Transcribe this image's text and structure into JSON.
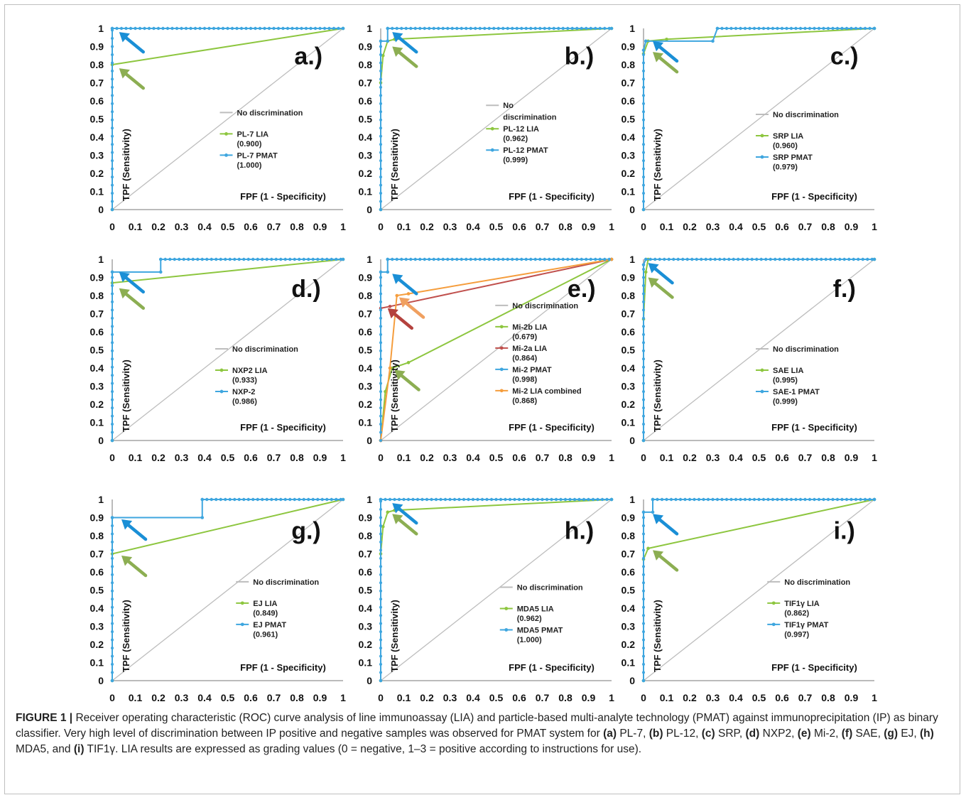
{
  "caption": {
    "figure_label": "FIGURE 1 |",
    "parts": [
      {
        "t": " Receiver operating characteristic (ROC) curve analysis of line immunoassay (LIA) and particle-based multi-analyte technology (PMAT) against immunoprecipitation (IP) as binary classifier. Very high level of discrimination between IP positive and negative samples was observed for PMAT system for ",
        "b": false
      },
      {
        "t": "(a)",
        "b": true
      },
      {
        "t": " PL-7, ",
        "b": false
      },
      {
        "t": "(b)",
        "b": true
      },
      {
        "t": " PL-12, ",
        "b": false
      },
      {
        "t": "(c)",
        "b": true
      },
      {
        "t": " SRP, ",
        "b": false
      },
      {
        "t": "(d)",
        "b": true
      },
      {
        "t": " NXP2, ",
        "b": false
      },
      {
        "t": "(e)",
        "b": true
      },
      {
        "t": " Mi-2, ",
        "b": false
      },
      {
        "t": "(f)",
        "b": true
      },
      {
        "t": " SAE, ",
        "b": false
      },
      {
        "t": "(g)",
        "b": true
      },
      {
        "t": " EJ, ",
        "b": false
      },
      {
        "t": "(h)",
        "b": true
      },
      {
        "t": " MDA5, and ",
        "b": false
      },
      {
        "t": "(i)",
        "b": true
      },
      {
        "t": " TIF1γ. LIA results are expressed as grading values (0 = negative, 1–3 = positive according to instructions for use).",
        "b": false
      }
    ]
  },
  "colors": {
    "lia": "#8dc63f",
    "pmat": "#3ea6df",
    "nodisc": "#bdbdbd",
    "mi2a": "#c0504d",
    "mi2comb": "#f59d3d",
    "arrow_blue": "#1a8fd6",
    "arrow_green": "#8cae52",
    "arrow_red": "#b4423e",
    "arrow_orange": "#f0a060"
  },
  "chart_data": [
    {
      "panel": "a.)",
      "type": "line",
      "ylabel": "TPF (Sensitivity)",
      "xlabel": "FPF (1 - Specificity)",
      "xlim": [
        0,
        1
      ],
      "ylim": [
        0,
        1
      ],
      "xticks": [
        "0",
        "0.1",
        "0.2",
        "0.3",
        "0.4",
        "0.5",
        "0.6",
        "0.7",
        "0.8",
        "0.9",
        "1"
      ],
      "yticks": [
        "0",
        "0.1",
        "0.2",
        "0.3",
        "0.4",
        "0.5",
        "0.6",
        "0.7",
        "0.8",
        "0.9",
        "1"
      ],
      "legend": [
        "No discrimination",
        "PL-7 LIA",
        "(0.900)",
        "PL-7 PMAT",
        "(1.000)"
      ],
      "series": [
        {
          "name": "PL-7 LIA",
          "auc": "0.900",
          "color": "#8dc63f",
          "points": [
            [
              0,
              0
            ],
            [
              0,
              0.8
            ],
            [
              1,
              1
            ]
          ]
        },
        {
          "name": "PL-7 PMAT",
          "auc": "1.000",
          "color": "#3ea6df",
          "points": [
            [
              0,
              0
            ],
            [
              0,
              1
            ],
            [
              1,
              1
            ]
          ]
        }
      ],
      "arrows": [
        {
          "color": "#1a8fd6",
          "tip": [
            0.03,
            0.98
          ]
        },
        {
          "color": "#8cae52",
          "tip": [
            0.03,
            0.78
          ]
        }
      ]
    },
    {
      "panel": "b.)",
      "type": "line",
      "ylabel": "TPF (Sensitivity)",
      "xlabel": "FPF (1 - Specificity)",
      "xlim": [
        0,
        1
      ],
      "ylim": [
        0,
        1
      ],
      "xticks": [
        "0",
        "0.1",
        "0.2",
        "0.3",
        "0.4",
        "0.5",
        "0.6",
        "0.7",
        "0.8",
        "0.9",
        "1"
      ],
      "yticks": [
        "0",
        "0.1",
        "0.2",
        "0.3",
        "0.4",
        "0.5",
        "0.6",
        "0.7",
        "0.8",
        "0.9",
        "1"
      ],
      "legend": [
        "No",
        "discrimination",
        "PL-12 LIA",
        "(0.962)",
        "PL-12 PMAT",
        "(0.999)"
      ],
      "series": [
        {
          "name": "PL-12 LIA",
          "auc": "0.962",
          "color": "#8dc63f",
          "points": [
            [
              0,
              0
            ],
            [
              0,
              0.7
            ],
            [
              0.01,
              0.85
            ],
            [
              0.03,
              0.93
            ],
            [
              0.06,
              0.94
            ],
            [
              1,
              1
            ]
          ]
        },
        {
          "name": "PL-12 PMAT",
          "auc": "0.999",
          "color": "#3ea6df",
          "points": [
            [
              0,
              0
            ],
            [
              0,
              0.93
            ],
            [
              0.03,
              0.93
            ],
            [
              0.03,
              1
            ],
            [
              1,
              1
            ]
          ]
        }
      ],
      "arrows": [
        {
          "color": "#1a8fd6",
          "tip": [
            0.05,
            0.98
          ]
        },
        {
          "color": "#8cae52",
          "tip": [
            0.05,
            0.9
          ]
        }
      ]
    },
    {
      "panel": "c.)",
      "type": "line",
      "ylabel": "TPF (Sensitivity)",
      "xlabel": "FPF (1 - Specificity)",
      "xlim": [
        0,
        1
      ],
      "ylim": [
        0,
        1
      ],
      "xticks": [
        "0",
        "0.1",
        "0.2",
        "0.3",
        "0.4",
        "0.5",
        "0.6",
        "0.7",
        "0.8",
        "0.9",
        "1"
      ],
      "yticks": [
        "0",
        "0.1",
        "0.2",
        "0.3",
        "0.4",
        "0.5",
        "0.6",
        "0.7",
        "0.8",
        "0.9",
        "1"
      ],
      "legend": [
        "No discrimination",
        "SRP LIA",
        "(0.960)",
        "SRP PMAT",
        "(0.979)"
      ],
      "series": [
        {
          "name": "SRP LIA",
          "auc": "0.960",
          "color": "#8dc63f",
          "points": [
            [
              0,
              0
            ],
            [
              0,
              0.86
            ],
            [
              0.02,
              0.93
            ],
            [
              0.1,
              0.94
            ],
            [
              1,
              1
            ]
          ]
        },
        {
          "name": "SRP PMAT",
          "auc": "0.979",
          "color": "#3ea6df",
          "points": [
            [
              0,
              0
            ],
            [
              0,
              0.88
            ],
            [
              0.01,
              0.93
            ],
            [
              0.3,
              0.93
            ],
            [
              0.32,
              1
            ],
            [
              1,
              1
            ]
          ]
        }
      ],
      "arrows": [
        {
          "color": "#1a8fd6",
          "tip": [
            0.04,
            0.93
          ]
        },
        {
          "color": "#8cae52",
          "tip": [
            0.04,
            0.87
          ]
        }
      ]
    },
    {
      "panel": "d.)",
      "type": "line",
      "ylabel": "TPF (Sensitivity)",
      "xlabel": "FPF (1 - Specificity)",
      "xlim": [
        0,
        1
      ],
      "ylim": [
        0,
        1
      ],
      "xticks": [
        "0",
        "0.1",
        "0.2",
        "0.3",
        "0.4",
        "0.5",
        "0.6",
        "0.7",
        "0.8",
        "0.9",
        "1"
      ],
      "yticks": [
        "0",
        "0.1",
        "0.2",
        "0.3",
        "0.4",
        "0.5",
        "0.6",
        "0.7",
        "0.8",
        "0.9",
        "1"
      ],
      "legend": [
        "No discrimination",
        "NXP2 LIA",
        "(0.933)",
        "NXP-2",
        "(0.986)"
      ],
      "series": [
        {
          "name": "NXP2 LIA",
          "auc": "0.933",
          "color": "#8dc63f",
          "points": [
            [
              0,
              0
            ],
            [
              0,
              0.87
            ],
            [
              1,
              1
            ]
          ]
        },
        {
          "name": "NXP-2",
          "auc": "0.986",
          "color": "#3ea6df",
          "points": [
            [
              0,
              0
            ],
            [
              0,
              0.93
            ],
            [
              0.21,
              0.93
            ],
            [
              0.21,
              1
            ],
            [
              1,
              1
            ]
          ]
        }
      ],
      "arrows": [
        {
          "color": "#1a8fd6",
          "tip": [
            0.03,
            0.93
          ]
        },
        {
          "color": "#8cae52",
          "tip": [
            0.03,
            0.84
          ]
        }
      ]
    },
    {
      "panel": "e.)",
      "type": "line",
      "ylabel": "TPF (Sensitivity)",
      "xlabel": "FPF (1 - Specificity)",
      "xlim": [
        0,
        1
      ],
      "ylim": [
        0,
        1
      ],
      "xticks": [
        "0",
        "0.1",
        "0.2",
        "0.3",
        "0.4",
        "0.5",
        "0.6",
        "0.7",
        "0.8",
        "0.9",
        "1"
      ],
      "yticks": [
        "0",
        "0.1",
        "0.2",
        "0.3",
        "0.4",
        "0.5",
        "0.6",
        "0.7",
        "0.8",
        "0.9",
        "1"
      ],
      "legend": [
        "No discrimination",
        "Mi-2b LIA",
        "(0.679)",
        "Mi-2a LIA",
        "(0.864)",
        "Mi-2 PMAT",
        "(0.998)",
        "Mi-2 LIA combined",
        "(0.868)"
      ],
      "series": [
        {
          "name": "Mi-2b LIA",
          "auc": "0.679",
          "color": "#8dc63f",
          "points": [
            [
              0,
              0
            ],
            [
              0.02,
              0.27
            ],
            [
              0.05,
              0.4
            ],
            [
              0.12,
              0.43
            ],
            [
              1,
              1
            ]
          ]
        },
        {
          "name": "Mi-2a LIA",
          "auc": "0.864",
          "color": "#c0504d",
          "points": [
            [
              0,
              0
            ],
            [
              0,
              0.73
            ],
            [
              0.04,
              0.74
            ],
            [
              1,
              1
            ]
          ]
        },
        {
          "name": "Mi-2 PMAT",
          "auc": "0.998",
          "color": "#3ea6df",
          "points": [
            [
              0,
              0
            ],
            [
              0,
              0.93
            ],
            [
              0.03,
              0.93
            ],
            [
              0.03,
              1
            ],
            [
              1,
              1
            ]
          ]
        },
        {
          "name": "Mi-2 LIA combined",
          "auc": "0.868",
          "color": "#f59d3d",
          "points": [
            [
              0,
              0
            ],
            [
              0.04,
              0.4
            ],
            [
              0.07,
              0.8
            ],
            [
              0.12,
              0.81
            ],
            [
              1,
              1
            ]
          ]
        }
      ],
      "arrows": [
        {
          "color": "#1a8fd6",
          "tip": [
            0.05,
            0.92
          ]
        },
        {
          "color": "#b4423e",
          "tip": [
            0.03,
            0.73
          ]
        },
        {
          "color": "#f0a060",
          "tip": [
            0.08,
            0.79
          ]
        },
        {
          "color": "#8cae52",
          "tip": [
            0.06,
            0.39
          ]
        }
      ]
    },
    {
      "panel": "f.)",
      "type": "line",
      "ylabel": "TPF (Sensitivity)",
      "xlabel": "FPF (1 - Specificity)",
      "xlim": [
        0,
        1
      ],
      "ylim": [
        0,
        1
      ],
      "xticks": [
        "0",
        "0.1",
        "0.2",
        "0.3",
        "0.4",
        "0.5",
        "0.6",
        "0.7",
        "0.8",
        "0.9",
        "1"
      ],
      "yticks": [
        "0",
        "0.1",
        "0.2",
        "0.3",
        "0.4",
        "0.5",
        "0.6",
        "0.7",
        "0.8",
        "0.9",
        "1"
      ],
      "legend": [
        "No discrimination",
        "SAE LIA",
        "(0.995)",
        "SAE-1 PMAT",
        "(0.999)"
      ],
      "series": [
        {
          "name": "SAE LIA",
          "auc": "0.995",
          "color": "#8dc63f",
          "points": [
            [
              0,
              0
            ],
            [
              0,
              0.67
            ],
            [
              0.01,
              0.93
            ],
            [
              0.02,
              1
            ],
            [
              1,
              1
            ]
          ]
        },
        {
          "name": "SAE-1 PMAT",
          "auc": "0.999",
          "color": "#3ea6df",
          "points": [
            [
              0,
              0
            ],
            [
              0,
              0.97
            ],
            [
              0.01,
              1
            ],
            [
              1,
              1
            ]
          ]
        }
      ],
      "arrows": [
        {
          "color": "#1a8fd6",
          "tip": [
            0.02,
            0.98
          ]
        },
        {
          "color": "#8cae52",
          "tip": [
            0.02,
            0.9
          ]
        }
      ]
    },
    {
      "panel": "g.)",
      "type": "line",
      "ylabel": "TPF (Sensitivity)",
      "xlabel": "FPF (1 - Specificity)",
      "xlim": [
        0,
        1
      ],
      "ylim": [
        0,
        1
      ],
      "xticks": [
        "0",
        "0.1",
        "0.2",
        "0.3",
        "0.4",
        "0.5",
        "0.6",
        "0.7",
        "0.8",
        "0.9",
        "1"
      ],
      "yticks": [
        "0",
        "0.1",
        "0.2",
        "0.3",
        "0.4",
        "0.5",
        "0.6",
        "0.7",
        "0.8",
        "0.9",
        "1"
      ],
      "legend": [
        "No discrimination",
        "EJ LIA",
        "(0.849)",
        "EJ PMAT",
        "(0.961)"
      ],
      "series": [
        {
          "name": "EJ LIA",
          "auc": "0.849",
          "color": "#8dc63f",
          "points": [
            [
              0,
              0
            ],
            [
              0,
              0.7
            ],
            [
              1,
              1
            ]
          ]
        },
        {
          "name": "EJ PMAT",
          "auc": "0.961",
          "color": "#3ea6df",
          "points": [
            [
              0,
              0
            ],
            [
              0,
              0.9
            ],
            [
              0.39,
              0.9
            ],
            [
              0.39,
              1
            ],
            [
              1,
              1
            ]
          ]
        }
      ],
      "arrows": [
        {
          "color": "#1a8fd6",
          "tip": [
            0.04,
            0.89
          ]
        },
        {
          "color": "#8cae52",
          "tip": [
            0.04,
            0.69
          ]
        }
      ]
    },
    {
      "panel": "h.)",
      "type": "line",
      "ylabel": "TPF (Sensitivity)",
      "xlabel": "FPF (1 - Specificity)",
      "xlim": [
        0,
        1
      ],
      "ylim": [
        0,
        1
      ],
      "xticks": [
        "0",
        "0.1",
        "0.2",
        "0.3",
        "0.4",
        "0.5",
        "0.6",
        "0.7",
        "0.8",
        "0.9",
        "1"
      ],
      "yticks": [
        "0",
        "0.1",
        "0.2",
        "0.3",
        "0.4",
        "0.5",
        "0.6",
        "0.7",
        "0.8",
        "0.9",
        "1"
      ],
      "legend": [
        "No discrimination",
        "MDA5 LIA",
        "(0.962)",
        "MDA5 PMAT",
        "(1.000)"
      ],
      "series": [
        {
          "name": "MDA5 LIA",
          "auc": "0.962",
          "color": "#8dc63f",
          "points": [
            [
              0,
              0
            ],
            [
              0,
              0.7
            ],
            [
              0.01,
              0.85
            ],
            [
              0.03,
              0.93
            ],
            [
              0.06,
              0.94
            ],
            [
              1,
              1
            ]
          ]
        },
        {
          "name": "MDA5 PMAT",
          "auc": "1.000",
          "color": "#3ea6df",
          "points": [
            [
              0,
              0
            ],
            [
              0,
              1
            ],
            [
              1,
              1
            ]
          ]
        }
      ],
      "arrows": [
        {
          "color": "#1a8fd6",
          "tip": [
            0.05,
            0.98
          ]
        },
        {
          "color": "#8cae52",
          "tip": [
            0.05,
            0.92
          ]
        }
      ]
    },
    {
      "panel": "i.)",
      "type": "line",
      "ylabel": "TPF (Sensitivity)",
      "xlabel": "FPF (1 - Specificity)",
      "xlim": [
        0,
        1
      ],
      "ylim": [
        0,
        1
      ],
      "xticks": [
        "0",
        "0.1",
        "0.2",
        "0.3",
        "0.4",
        "0.5",
        "0.6",
        "0.7",
        "0.8",
        "0.9",
        "1"
      ],
      "yticks": [
        "0",
        "0.1",
        "0.2",
        "0.3",
        "0.4",
        "0.5",
        "0.6",
        "0.7",
        "0.8",
        "0.9",
        "1"
      ],
      "legend": [
        "No discrimination",
        "TIF1γ LIA",
        "(0.862)",
        "TIF1γ PMAT",
        "(0.997)"
      ],
      "series": [
        {
          "name": "TIF1γ LIA",
          "auc": "0.862",
          "color": "#8dc63f",
          "points": [
            [
              0,
              0
            ],
            [
              0,
              0.67
            ],
            [
              0.02,
              0.73
            ],
            [
              1,
              1
            ]
          ]
        },
        {
          "name": "TIF1γ PMAT",
          "auc": "0.997",
          "color": "#3ea6df",
          "points": [
            [
              0,
              0
            ],
            [
              0,
              0.93
            ],
            [
              0.04,
              0.93
            ],
            [
              0.04,
              1
            ],
            [
              1,
              1
            ]
          ]
        }
      ],
      "arrows": [
        {
          "color": "#1a8fd6",
          "tip": [
            0.04,
            0.92
          ]
        },
        {
          "color": "#8cae52",
          "tip": [
            0.04,
            0.72
          ]
        }
      ]
    }
  ]
}
